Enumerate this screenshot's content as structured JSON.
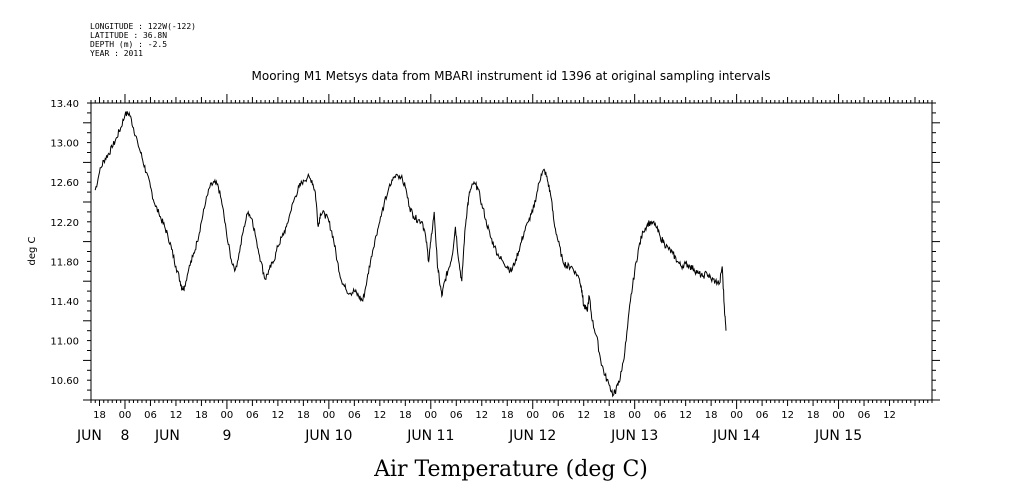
{
  "header": {
    "longitude": "LONGITUDE : 122W(-122)",
    "latitude": "LATITUDE : 36.8N",
    "depth": "DEPTH (m) : -2.5",
    "year": "YEAR : 2011"
  },
  "chart_data": {
    "type": "line",
    "title": "Mooring M1 Metsys data from MBARI instrument id 1396 at original sampling intervals",
    "xlabel": "Air Temperature (deg C)",
    "ylabel": "deg C",
    "ylim": [
      10.4,
      13.4
    ],
    "xlim_hours": [
      16,
      214
    ],
    "y_ticks": [
      "10.60",
      "11.00",
      "11.40",
      "11.80",
      "12.20",
      "12.60",
      "13.00",
      "13.40"
    ],
    "x_hour_ticks": [
      {
        "label": "18",
        "h": 18
      },
      {
        "label": "00",
        "h": 24
      },
      {
        "label": "06",
        "h": 30
      },
      {
        "label": "12",
        "h": 36
      },
      {
        "label": "18",
        "h": 42
      },
      {
        "label": "00",
        "h": 48
      },
      {
        "label": "06",
        "h": 54
      },
      {
        "label": "12",
        "h": 60
      },
      {
        "label": "18",
        "h": 66
      },
      {
        "label": "00",
        "h": 72
      },
      {
        "label": "06",
        "h": 78
      },
      {
        "label": "12",
        "h": 84
      },
      {
        "label": "18",
        "h": 90
      },
      {
        "label": "00",
        "h": 96
      },
      {
        "label": "06",
        "h": 102
      },
      {
        "label": "12",
        "h": 108
      },
      {
        "label": "18",
        "h": 114
      },
      {
        "label": "00",
        "h": 120
      },
      {
        "label": "06",
        "h": 126
      },
      {
        "label": "12",
        "h": 132
      },
      {
        "label": "18",
        "h": 138
      },
      {
        "label": "00",
        "h": 144
      },
      {
        "label": "06",
        "h": 150
      },
      {
        "label": "12",
        "h": 156
      },
      {
        "label": "18",
        "h": 162
      },
      {
        "label": "00",
        "h": 168
      },
      {
        "label": "06",
        "h": 174
      },
      {
        "label": "12",
        "h": 180
      },
      {
        "label": "18",
        "h": 186
      },
      {
        "label": "00",
        "h": 192
      },
      {
        "label": "06",
        "h": 198
      },
      {
        "label": "12",
        "h": 204
      }
    ],
    "x_day_labels": [
      {
        "label": "JUN",
        "h": 16.5
      },
      {
        "label": "8",
        "h": 24
      },
      {
        "label": "JUN",
        "h": 34
      },
      {
        "label": "9",
        "h": 48
      },
      {
        "label": "JUN 10",
        "h": 72
      },
      {
        "label": "JUN 11",
        "h": 96
      },
      {
        "label": "JUN 12",
        "h": 120
      },
      {
        "label": "JUN 13",
        "h": 144
      },
      {
        "label": "JUN 14",
        "h": 168
      },
      {
        "label": "JUN 15",
        "h": 192
      }
    ],
    "series": [
      {
        "points": [
          [
            17,
            12.52
          ],
          [
            18,
            12.7
          ],
          [
            19,
            12.82
          ],
          [
            20,
            12.88
          ],
          [
            21,
            12.95
          ],
          [
            22,
            13.05
          ],
          [
            23,
            13.15
          ],
          [
            24,
            13.28
          ],
          [
            25,
            13.3
          ],
          [
            26,
            13.15
          ],
          [
            27,
            13.0
          ],
          [
            28,
            12.85
          ],
          [
            29,
            12.7
          ],
          [
            30,
            12.55
          ],
          [
            31,
            12.38
          ],
          [
            32,
            12.28
          ],
          [
            33,
            12.18
          ],
          [
            34,
            12.08
          ],
          [
            35,
            11.92
          ],
          [
            36,
            11.75
          ],
          [
            37,
            11.6
          ],
          [
            37.5,
            11.52
          ],
          [
            38,
            11.55
          ],
          [
            39,
            11.72
          ],
          [
            40,
            11.85
          ],
          [
            41,
            12.0
          ],
          [
            42,
            12.2
          ],
          [
            43,
            12.4
          ],
          [
            44,
            12.55
          ],
          [
            45,
            12.6
          ],
          [
            46,
            12.55
          ],
          [
            47,
            12.35
          ],
          [
            48,
            12.05
          ],
          [
            49,
            11.82
          ],
          [
            50,
            11.72
          ],
          [
            51,
            11.9
          ],
          [
            52,
            12.15
          ],
          [
            53,
            12.3
          ],
          [
            54,
            12.22
          ],
          [
            55,
            12.0
          ],
          [
            56,
            11.8
          ],
          [
            57,
            11.62
          ],
          [
            58,
            11.72
          ],
          [
            59,
            11.8
          ],
          [
            60,
            11.95
          ],
          [
            61,
            12.05
          ],
          [
            62,
            12.15
          ],
          [
            63,
            12.3
          ],
          [
            64,
            12.45
          ],
          [
            65,
            12.55
          ],
          [
            66,
            12.62
          ],
          [
            67,
            12.65
          ],
          [
            68,
            12.62
          ],
          [
            68.8,
            12.5
          ],
          [
            69.5,
            12.15
          ],
          [
            70,
            12.28
          ],
          [
            71,
            12.28
          ],
          [
            72,
            12.2
          ],
          [
            73,
            12.05
          ],
          [
            74,
            11.8
          ],
          [
            75,
            11.6
          ],
          [
            76,
            11.52
          ],
          [
            77,
            11.48
          ],
          [
            78,
            11.5
          ],
          [
            79,
            11.45
          ],
          [
            80,
            11.4
          ],
          [
            81,
            11.62
          ],
          [
            82,
            11.85
          ],
          [
            83,
            12.05
          ],
          [
            84,
            12.2
          ],
          [
            85,
            12.38
          ],
          [
            86,
            12.52
          ],
          [
            87,
            12.62
          ],
          [
            88,
            12.68
          ],
          [
            89,
            12.65
          ],
          [
            90,
            12.55
          ],
          [
            91,
            12.35
          ],
          [
            92,
            12.25
          ],
          [
            93,
            12.22
          ],
          [
            94,
            12.2
          ],
          [
            94.8,
            12.05
          ],
          [
            95.5,
            11.8
          ],
          [
            96,
            12.0
          ],
          [
            96.8,
            12.3
          ],
          [
            97.5,
            11.8
          ],
          [
            98,
            11.62
          ],
          [
            98.6,
            11.45
          ],
          [
            99.3,
            11.6
          ],
          [
            100,
            11.7
          ],
          [
            101,
            11.85
          ],
          [
            101.8,
            12.15
          ],
          [
            102.6,
            11.8
          ],
          [
            103.3,
            11.6
          ],
          [
            104,
            12.1
          ],
          [
            104.6,
            12.35
          ],
          [
            105.2,
            12.5
          ],
          [
            106,
            12.58
          ],
          [
            107,
            12.55
          ],
          [
            108,
            12.38
          ],
          [
            109,
            12.22
          ],
          [
            110,
            12.05
          ],
          [
            111,
            11.95
          ],
          [
            112,
            11.85
          ],
          [
            113,
            11.8
          ],
          [
            114,
            11.75
          ],
          [
            115,
            11.7
          ],
          [
            116,
            11.82
          ],
          [
            117,
            11.95
          ],
          [
            118,
            12.1
          ],
          [
            119,
            12.2
          ],
          [
            120,
            12.3
          ],
          [
            121,
            12.5
          ],
          [
            122,
            12.68
          ],
          [
            122.8,
            12.72
          ],
          [
            123.6,
            12.6
          ],
          [
            124.3,
            12.45
          ],
          [
            125,
            12.2
          ],
          [
            126,
            12.0
          ],
          [
            127,
            11.82
          ],
          [
            128,
            11.75
          ],
          [
            129,
            11.75
          ],
          [
            130,
            11.7
          ],
          [
            131,
            11.62
          ],
          [
            131.6,
            11.5
          ],
          [
            132,
            11.35
          ],
          [
            132.8,
            11.3
          ],
          [
            133.3,
            11.45
          ],
          [
            134,
            11.2
          ],
          [
            135,
            11.05
          ],
          [
            136,
            10.8
          ],
          [
            137,
            10.65
          ],
          [
            138,
            10.55
          ],
          [
            139,
            10.45
          ],
          [
            139.6,
            10.5
          ],
          [
            140.3,
            10.58
          ],
          [
            141,
            10.7
          ],
          [
            142,
            11.0
          ],
          [
            143,
            11.4
          ],
          [
            144,
            11.7
          ],
          [
            145,
            11.95
          ],
          [
            146,
            12.1
          ],
          [
            147,
            12.18
          ],
          [
            148,
            12.2
          ],
          [
            149,
            12.15
          ],
          [
            150,
            12.05
          ],
          [
            151,
            11.98
          ],
          [
            152,
            11.92
          ],
          [
            153,
            11.88
          ],
          [
            154,
            11.8
          ],
          [
            155,
            11.75
          ],
          [
            156,
            11.78
          ],
          [
            157,
            11.75
          ],
          [
            158,
            11.72
          ],
          [
            159,
            11.68
          ],
          [
            160,
            11.65
          ],
          [
            161,
            11.68
          ],
          [
            162,
            11.62
          ],
          [
            163,
            11.6
          ],
          [
            164,
            11.58
          ],
          [
            164.6,
            11.75
          ],
          [
            165.1,
            11.35
          ],
          [
            165.5,
            11.1
          ]
        ]
      }
    ],
    "axis_numbers": [
      "0.0",
      "0.5",
      "1.0",
      "1.5",
      "2.0",
      "2.5",
      "3.0",
      "3.5",
      "4.0",
      "4.5",
      "5.0",
      "5.5",
      "6.0",
      "6.5",
      "7.0"
    ],
    "x_day_tick_hours": [
      24,
      48,
      72,
      96,
      120,
      144,
      168,
      192
    ],
    "grid": false,
    "line_color": "#000000"
  }
}
